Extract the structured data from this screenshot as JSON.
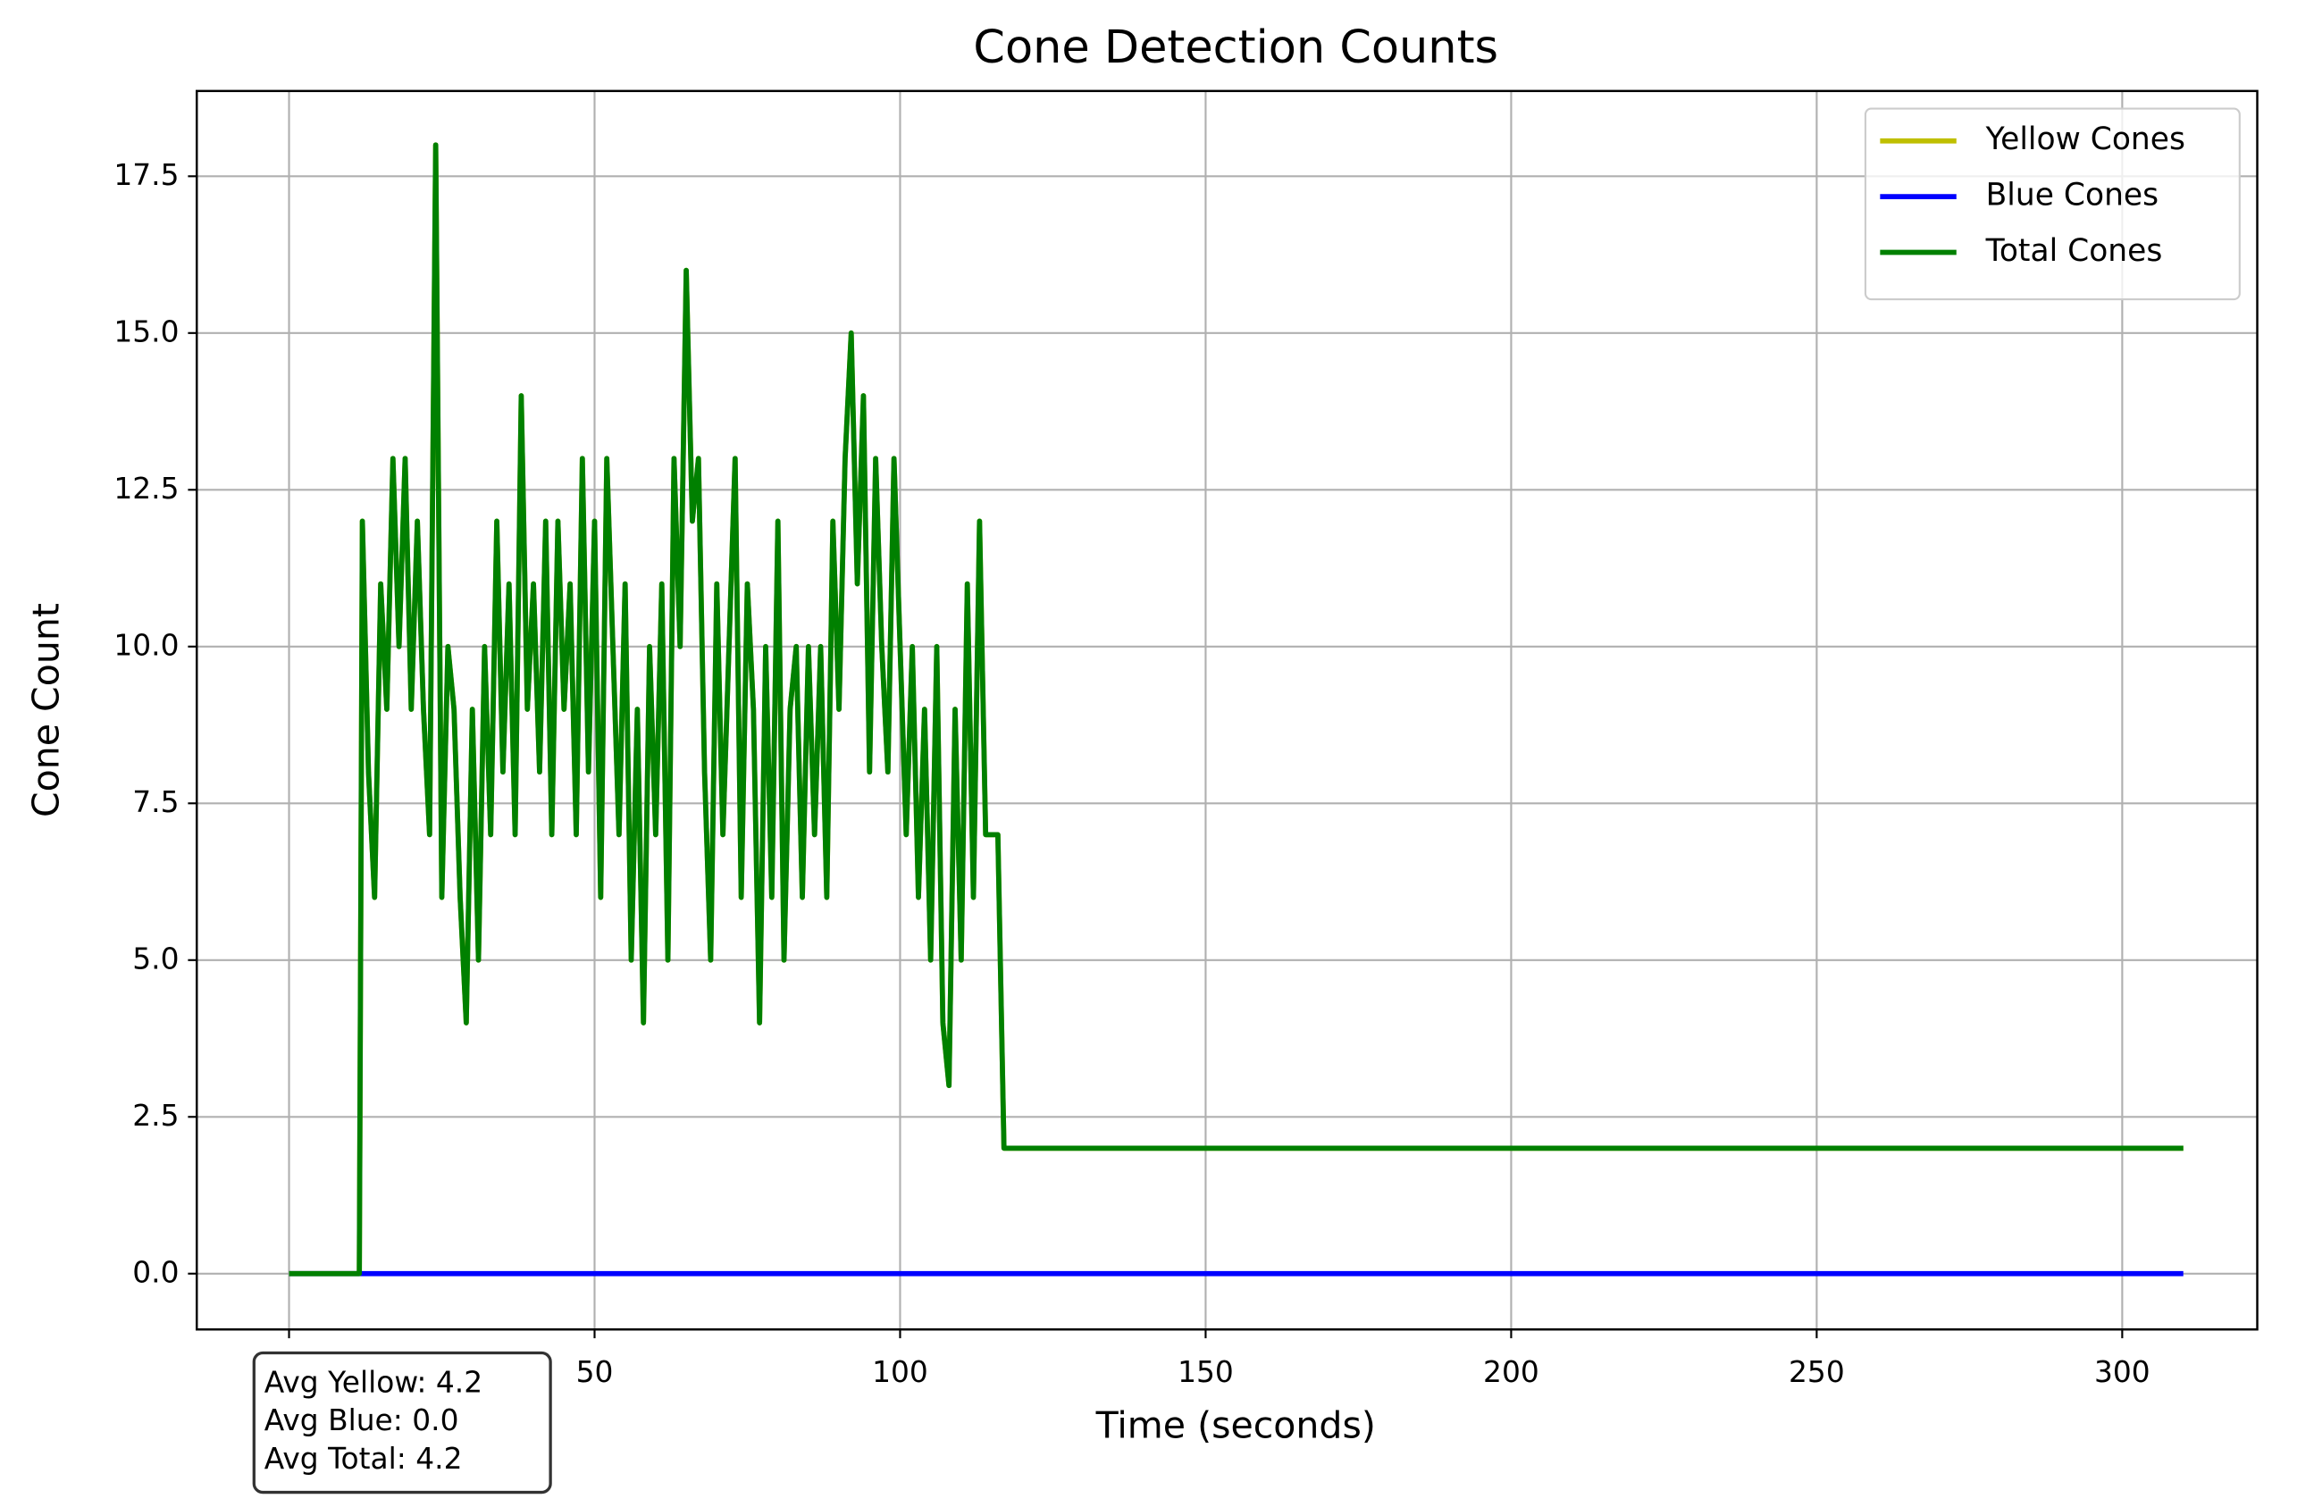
{
  "chart_data": {
    "type": "line",
    "title": "Cone Detection Counts",
    "x_label": "Time (seconds)",
    "y_label": "Cone Count",
    "x": [
      0,
      11.5,
      12,
      13,
      14,
      15,
      16,
      17,
      18,
      19,
      20,
      21,
      22,
      23,
      24,
      25,
      26,
      27,
      28,
      29,
      30,
      31,
      32,
      33,
      34,
      35,
      36,
      37,
      38,
      39,
      40,
      41,
      42,
      43,
      44,
      45,
      46,
      47,
      48,
      49,
      50,
      51,
      52,
      53,
      54,
      55,
      56,
      57,
      58,
      59,
      60,
      61,
      62,
      63,
      64,
      65,
      66,
      67,
      68,
      69,
      70,
      71,
      72,
      73,
      74,
      75,
      76,
      77,
      78,
      79,
      80,
      81,
      82,
      83,
      84,
      85,
      86,
      87,
      88,
      89,
      90,
      91,
      92,
      93,
      94,
      95,
      96,
      97,
      98,
      99,
      100,
      101,
      102,
      103,
      104,
      105,
      106,
      107,
      108,
      109,
      110,
      111,
      112,
      113,
      114,
      115,
      116,
      117,
      310
    ],
    "series": [
      {
        "name": "Yellow Cones",
        "color": "#bfbf00",
        "values": [
          0,
          0,
          12,
          8,
          6,
          11,
          9,
          13,
          10,
          13,
          9,
          12,
          9,
          7,
          18,
          6,
          10,
          9,
          6,
          4,
          9,
          5,
          10,
          7,
          12,
          8,
          11,
          7,
          14,
          9,
          11,
          8,
          12,
          7,
          12,
          9,
          11,
          7,
          13,
          8,
          12,
          6,
          13,
          10,
          7,
          11,
          5,
          9,
          4,
          10,
          7,
          11,
          5,
          13,
          10,
          16,
          12,
          13,
          8,
          5,
          11,
          7,
          10,
          13,
          6,
          11,
          9,
          4,
          10,
          6,
          12,
          5,
          9,
          10,
          6,
          10,
          7,
          10,
          6,
          12,
          9,
          13,
          15,
          11,
          14,
          8,
          13,
          10,
          8,
          13,
          10,
          7,
          10,
          6,
          9,
          5,
          10,
          4,
          3,
          9,
          5,
          11,
          6,
          12,
          7,
          7,
          7,
          2,
          2
        ]
      },
      {
        "name": "Blue Cones",
        "color": "#0000ff",
        "values": [
          0,
          0,
          0,
          0,
          0,
          0,
          0,
          0,
          0,
          0,
          0,
          0,
          0,
          0,
          0,
          0,
          0,
          0,
          0,
          0,
          0,
          0,
          0,
          0,
          0,
          0,
          0,
          0,
          0,
          0,
          0,
          0,
          0,
          0,
          0,
          0,
          0,
          0,
          0,
          0,
          0,
          0,
          0,
          0,
          0,
          0,
          0,
          0,
          0,
          0,
          0,
          0,
          0,
          0,
          0,
          0,
          0,
          0,
          0,
          0,
          0,
          0,
          0,
          0,
          0,
          0,
          0,
          0,
          0,
          0,
          0,
          0,
          0,
          0,
          0,
          0,
          0,
          0,
          0,
          0,
          0,
          0,
          0,
          0,
          0,
          0,
          0,
          0,
          0,
          0,
          0,
          0,
          0,
          0,
          0,
          0,
          0,
          0,
          0,
          0,
          0,
          0,
          0,
          0,
          0,
          0,
          0,
          0,
          0
        ]
      },
      {
        "name": "Total Cones",
        "color": "#008000",
        "values": [
          0,
          0,
          12,
          8,
          6,
          11,
          9,
          13,
          10,
          13,
          9,
          12,
          9,
          7,
          18,
          6,
          10,
          9,
          6,
          4,
          9,
          5,
          10,
          7,
          12,
          8,
          11,
          7,
          14,
          9,
          11,
          8,
          12,
          7,
          12,
          9,
          11,
          7,
          13,
          8,
          12,
          6,
          13,
          10,
          7,
          11,
          5,
          9,
          4,
          10,
          7,
          11,
          5,
          13,
          10,
          16,
          12,
          13,
          8,
          5,
          11,
          7,
          10,
          13,
          6,
          11,
          9,
          4,
          10,
          6,
          12,
          5,
          9,
          10,
          6,
          10,
          7,
          10,
          6,
          12,
          9,
          13,
          15,
          11,
          14,
          8,
          13,
          10,
          8,
          13,
          10,
          7,
          10,
          6,
          9,
          5,
          10,
          4,
          3,
          9,
          5,
          11,
          6,
          12,
          7,
          7,
          7,
          2,
          2
        ]
      }
    ],
    "xlim": [
      -15.1,
      322.1
    ],
    "ylim": [
      -0.89,
      18.86
    ],
    "xticks": [
      0,
      50,
      100,
      150,
      200,
      250,
      300
    ],
    "yticks": [
      {
        "value": 0,
        "label": "0.0"
      },
      2.5,
      {
        "value": 5,
        "label": "5.0"
      },
      7.5,
      {
        "value": 10,
        "label": "10.0"
      },
      12.5,
      {
        "value": 15,
        "label": "15.0"
      },
      17.5
    ],
    "grid": true,
    "legend": "upper right",
    "annotation": [
      "Avg Yellow: 4.2",
      "Avg Blue: 0.0",
      "Avg Total: 4.2"
    ]
  }
}
